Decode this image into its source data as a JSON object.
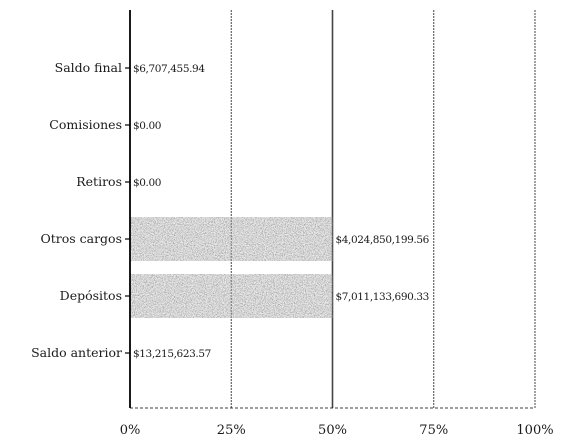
{
  "chart_data": {
    "type": "bar",
    "orientation": "horizontal",
    "categories": [
      "Saldo anterior",
      "Depósitos",
      "Otros cargos",
      "Retiros",
      "Comisiones",
      "Saldo final"
    ],
    "values": [
      0,
      50,
      50,
      0,
      0,
      0
    ],
    "value_labels": [
      "$13,215,623.57",
      "$7,011,133,690.33",
      "$4,024,850,199.56",
      "$0.00",
      "$0.00",
      "$6,707,455.94"
    ],
    "xlim": [
      0,
      100
    ],
    "x_unit": "%",
    "xticks": [
      0,
      25,
      50,
      75,
      100
    ],
    "xtick_labels": [
      "0%",
      "25%",
      "50%",
      "75%",
      "100%"
    ],
    "grid": "vertical",
    "bar_fill": "noisy-dark-texture",
    "colors": {
      "bar": "#3a3a3a",
      "grid": "#444444",
      "axis": "#000000",
      "text": "#1a1a1a"
    }
  }
}
